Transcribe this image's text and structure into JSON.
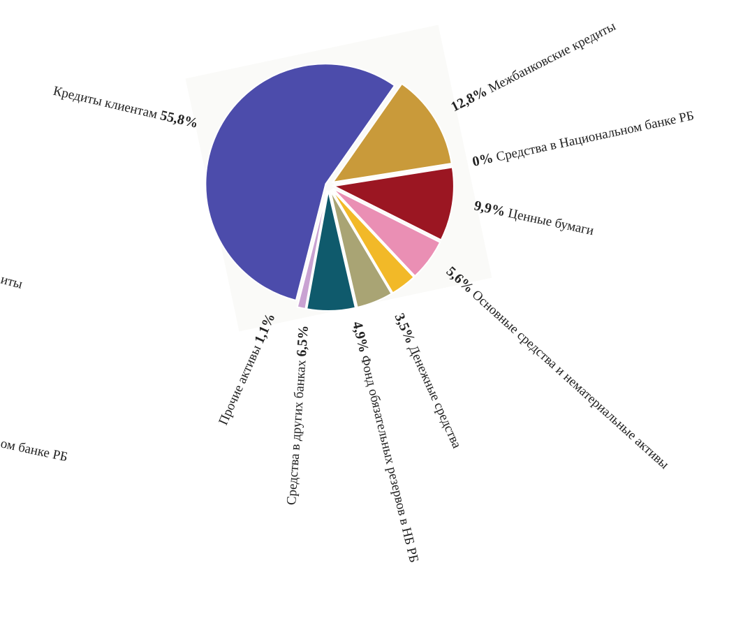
{
  "chart_data": {
    "type": "pie",
    "categories": [
      "Межбанковские кредиты",
      "Средства в Национальном банке РБ",
      "Ценные бумаги",
      "Основные средства и нематериальные активы",
      "Денежные средства",
      "Фонд обязательных резервов в НБ РБ",
      "Средства в других банках",
      "Прочие активы",
      "Кредиты клиентам"
    ],
    "values": [
      12.8,
      0,
      9.9,
      5.6,
      3.5,
      4.9,
      6.5,
      1.1,
      55.8
    ],
    "value_labels": [
      "12,8%",
      "0%",
      "9,9%",
      "5,6%",
      "3,5%",
      "4,9%",
      "6,5%",
      "1,1%",
      "55,8%"
    ],
    "colors": [
      "#c99a3a",
      "#ffffff",
      "#9b1622",
      "#ea8fb4",
      "#f2b928",
      "#a9a474",
      "#0f5a6c",
      "#c9a2d2",
      "#4c4cab"
    ],
    "cropped_labels": [
      "иты",
      "ом банке РБ"
    ]
  }
}
